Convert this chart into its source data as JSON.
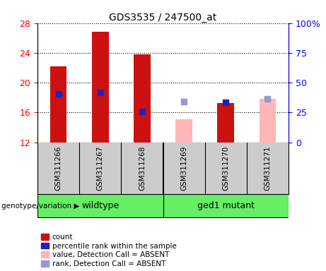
{
  "title": "GDS3535 / 247500_at",
  "samples": [
    "GSM311266",
    "GSM311267",
    "GSM311268",
    "GSM311269",
    "GSM311270",
    "GSM311271"
  ],
  "count_values": [
    22.2,
    26.8,
    23.8,
    null,
    17.3,
    null
  ],
  "count_absent_values": [
    null,
    null,
    null,
    15.1,
    null,
    17.8
  ],
  "percentile_values": [
    18.5,
    18.7,
    16.1,
    null,
    17.4,
    null
  ],
  "percentile_absent_values": [
    null,
    null,
    null,
    17.5,
    null,
    17.8
  ],
  "ylim_left": [
    12,
    28
  ],
  "ylim_right": [
    0,
    100
  ],
  "yticks_left": [
    12,
    16,
    20,
    24,
    28
  ],
  "yticks_right": [
    0,
    25,
    50,
    75,
    100
  ],
  "yticklabels_right": [
    "0",
    "25",
    "50",
    "75",
    "100%"
  ],
  "bar_width": 0.4,
  "bar_color_count": "#cc1111",
  "bar_color_count_absent": "#ffb6b6",
  "dot_color_percentile": "#2222bb",
  "dot_color_percentile_absent": "#9999cc",
  "dot_size": 35,
  "bg_color": "#cccccc",
  "group_color": "#66ee66",
  "legend_items": [
    {
      "color": "#cc1111",
      "label": "count"
    },
    {
      "color": "#2222bb",
      "label": "percentile rank within the sample"
    },
    {
      "color": "#ffb6b6",
      "label": "value, Detection Call = ABSENT"
    },
    {
      "color": "#9999cc",
      "label": "rank, Detection Call = ABSENT"
    }
  ]
}
